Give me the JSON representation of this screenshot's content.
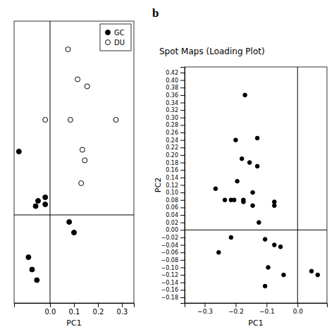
{
  "chart_data": [
    {
      "type": "scatter",
      "xlabel": "PC1",
      "xlim": [
        -0.15,
        0.35
      ],
      "ylim": [
        -0.25,
        0.55
      ],
      "xticks": [
        {
          "value": 0,
          "label": "0.0"
        },
        0.1,
        0.2,
        0.3
      ],
      "tick_labels": "x",
      "hline": 0,
      "vline": 0,
      "legend": "upper right",
      "series": [
        {
          "name": "GC",
          "color": "black",
          "marker": "circle",
          "x": [
            -0.13,
            -0.02,
            -0.05,
            -0.06,
            -0.02,
            0.08,
            0.1,
            -0.09,
            -0.075,
            -0.055
          ],
          "values": [
            0.18,
            0.05,
            0.04,
            0.025,
            0.03,
            -0.02,
            -0.05,
            -0.12,
            -0.155,
            -0.185
          ]
        },
        {
          "name": "DU",
          "color": "white",
          "marker": "circle",
          "x": [
            0.075,
            0.115,
            0.155,
            -0.02,
            0.085,
            0.275,
            0.135,
            0.145,
            0.13
          ],
          "values": [
            0.47,
            0.385,
            0.365,
            0.27,
            0.27,
            0.27,
            0.185,
            0.155,
            0.09
          ]
        }
      ]
    },
    {
      "type": "scatter",
      "title": "Spot Maps (Loading Plot)",
      "annotations": [
        "b"
      ],
      "xlabel": "PC1",
      "ylabel": "PC2",
      "xlim": [
        -0.365,
        0.095
      ],
      "ylim": [
        -0.195,
        0.435
      ],
      "xticks": [
        {
          "value": -0.3,
          "label": "−0.3"
        },
        {
          "value": -0.2,
          "label": "−0.2"
        },
        {
          "value": -0.1,
          "label": "−0.1"
        },
        {
          "value": 0,
          "label": "0.0"
        }
      ],
      "yticks": [
        0.42,
        {
          "value": 0.4,
          "label": "0.40"
        },
        0.38,
        0.36,
        0.34,
        0.32,
        {
          "value": 0.3,
          "label": "0.30"
        },
        0.28,
        0.26,
        0.24,
        0.22,
        {
          "value": 0.2,
          "label": "0.20"
        },
        0.18,
        0.16,
        0.14,
        0.12,
        {
          "value": 0.1,
          "label": "0.10"
        },
        0.08,
        0.06,
        0.04,
        0.02,
        {
          "value": 0.0,
          "label": "0.00"
        },
        {
          "value": -0.02,
          "label": "−0.02"
        },
        {
          "value": -0.04,
          "label": "−0.04"
        },
        {
          "value": -0.06,
          "label": "−0.06"
        },
        {
          "value": -0.08,
          "label": "−0.08"
        },
        {
          "value": -0.1,
          "label": "−0.10"
        },
        {
          "value": -0.12,
          "label": "−0.12"
        },
        {
          "value": -0.14,
          "label": "−0.14"
        },
        {
          "value": -0.16,
          "label": "−0.16"
        },
        {
          "value": -0.18,
          "label": "−0.18"
        }
      ],
      "hline": 0,
      "vline": 0,
      "series": [
        {
          "color": "black",
          "marker": "circle",
          "x": [
            -0.17,
            -0.2,
            -0.13,
            -0.18,
            -0.155,
            -0.13,
            -0.265,
            -0.195,
            -0.235,
            -0.215,
            -0.205,
            -0.175,
            -0.175,
            -0.145,
            -0.145,
            -0.125,
            -0.075,
            -0.075,
            -0.215,
            -0.255,
            -0.105,
            -0.075,
            -0.055,
            -0.095,
            -0.045,
            -0.105,
            0.045,
            0.065
          ],
          "values": [
            0.36,
            0.24,
            0.245,
            0.19,
            0.18,
            0.17,
            0.11,
            0.13,
            0.08,
            0.08,
            0.08,
            0.08,
            0.075,
            0.1,
            0.065,
            0.02,
            0.075,
            0.065,
            -0.02,
            -0.06,
            -0.025,
            -0.04,
            -0.045,
            -0.1,
            -0.12,
            -0.15,
            -0.11,
            -0.12
          ]
        }
      ]
    }
  ]
}
